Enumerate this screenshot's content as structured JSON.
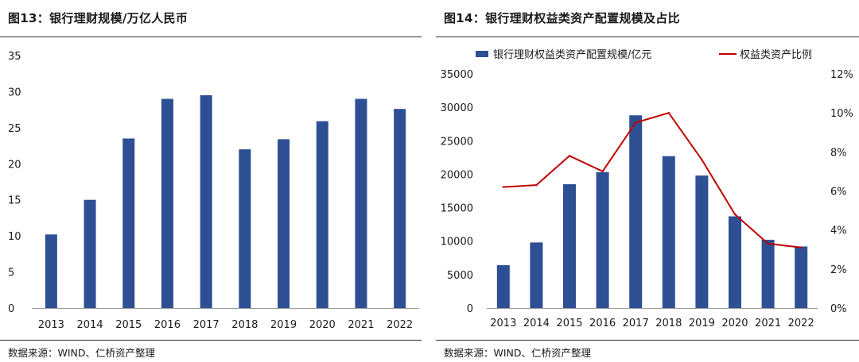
{
  "left": {
    "title": "图13：银行理财规模/万亿人民币",
    "source": "数据来源：WIND、仁桥资产整理"
  },
  "right": {
    "title": "图14：银行理财权益类资产配置规模及占比",
    "source": "数据来源：WIND、仁桥资产整理"
  },
  "colors": {
    "bar": "#2e4f94",
    "line": "#c00000",
    "axis": "#999999"
  },
  "chart_data": [
    {
      "type": "bar",
      "title": "图13：银行理财规模/万亿人民币",
      "categories": [
        "2013",
        "2014",
        "2015",
        "2016",
        "2017",
        "2018",
        "2019",
        "2020",
        "2021",
        "2022"
      ],
      "values": [
        10.2,
        15.0,
        23.5,
        29.0,
        29.5,
        22.0,
        23.4,
        25.9,
        29.0,
        27.6
      ],
      "ylim": [
        0,
        35
      ],
      "yticks": [
        "0",
        "5",
        "10",
        "15",
        "20",
        "25",
        "30",
        "35"
      ],
      "grid": false
    },
    {
      "type": "bar+line",
      "title": "图14：银行理财权益类资产配置规模及占比",
      "categories": [
        "2013",
        "2014",
        "2015",
        "2016",
        "2017",
        "2018",
        "2019",
        "2020",
        "2021",
        "2022"
      ],
      "series": [
        {
          "name": "银行理财权益类资产配置规模/亿元",
          "type": "bar",
          "axis": "left",
          "values": [
            6400,
            9800,
            18500,
            20300,
            28800,
            22700,
            19800,
            13700,
            10200,
            9200
          ]
        },
        {
          "name": "权益类资产比例",
          "type": "line",
          "axis": "right",
          "values": [
            6.2,
            6.3,
            7.8,
            7.0,
            9.5,
            10.0,
            7.6,
            4.8,
            3.3,
            3.1
          ]
        }
      ],
      "ylim_left": [
        0,
        35000
      ],
      "yticks_left": [
        "0",
        "5000",
        "10000",
        "15000",
        "20000",
        "25000",
        "30000",
        "35000"
      ],
      "ylim_right": [
        0,
        12
      ],
      "yticks_right": [
        "0%",
        "2%",
        "4%",
        "6%",
        "8%",
        "10%",
        "12%"
      ],
      "legend": "top",
      "grid": false
    }
  ]
}
